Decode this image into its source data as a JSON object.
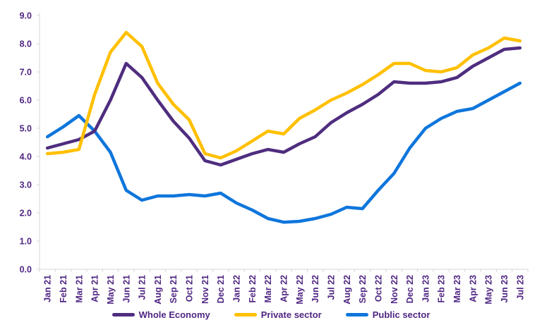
{
  "chart_data": {
    "type": "line",
    "title": "",
    "xlabel": "",
    "ylabel": "",
    "categories": [
      "Jan 21",
      "Feb 21",
      "Mar 21",
      "Apr 21",
      "May 21",
      "Jun 21",
      "Jul 21",
      "Aug 21",
      "Sep 21",
      "Oct 21",
      "Nov 21",
      "Dec 21",
      "Jan 22",
      "Feb 22",
      "Mar 22",
      "Apr 22",
      "May 22",
      "Jun 22",
      "Jul 22",
      "Aug 22",
      "Sep 22",
      "Oct 22",
      "Nov 22",
      "Dec 22",
      "Jan 23",
      "Feb 23",
      "Mar 23",
      "Apr 23",
      "May 23",
      "Jun 23",
      "Jul 23"
    ],
    "series": [
      {
        "name": "Whole Economy",
        "color": "#4F2D7F",
        "values": [
          4.3,
          4.45,
          4.6,
          4.9,
          6.0,
          7.3,
          6.8,
          6.0,
          5.25,
          4.65,
          3.85,
          3.7,
          3.9,
          4.1,
          4.25,
          4.15,
          4.45,
          4.7,
          5.2,
          5.55,
          5.85,
          6.2,
          6.65,
          6.6,
          6.6,
          6.65,
          6.8,
          7.2,
          7.5,
          7.8,
          7.85
        ]
      },
      {
        "name": "Private sector",
        "color": "#FFC000",
        "values": [
          4.1,
          4.15,
          4.25,
          6.2,
          7.7,
          8.4,
          7.9,
          6.6,
          5.85,
          5.3,
          4.1,
          3.95,
          4.2,
          4.55,
          4.9,
          4.8,
          5.35,
          5.65,
          6.0,
          6.25,
          6.55,
          6.9,
          7.3,
          7.3,
          7.05,
          7.0,
          7.15,
          7.6,
          7.85,
          8.2,
          8.1
        ]
      },
      {
        "name": "Public sector",
        "color": "#0E76DC",
        "values": [
          4.7,
          5.05,
          5.45,
          4.9,
          4.15,
          2.8,
          2.45,
          2.6,
          2.6,
          2.65,
          2.6,
          2.7,
          2.35,
          2.1,
          1.8,
          1.67,
          1.7,
          1.8,
          1.95,
          2.2,
          2.15,
          2.8,
          3.4,
          4.3,
          5.0,
          5.35,
          5.6,
          5.7,
          6.0,
          6.3,
          6.6
        ]
      }
    ],
    "ylim": [
      0,
      9
    ],
    "ytick_step": 1,
    "ytick_decimals": 1,
    "grid": "none",
    "legend_position": "bottom",
    "draw_order": [
      "Public sector",
      "Whole Economy",
      "Private sector"
    ],
    "axis_label_color": "#4F2683",
    "axis_line_color": "#D6D6D6",
    "line_width": 4.5
  }
}
